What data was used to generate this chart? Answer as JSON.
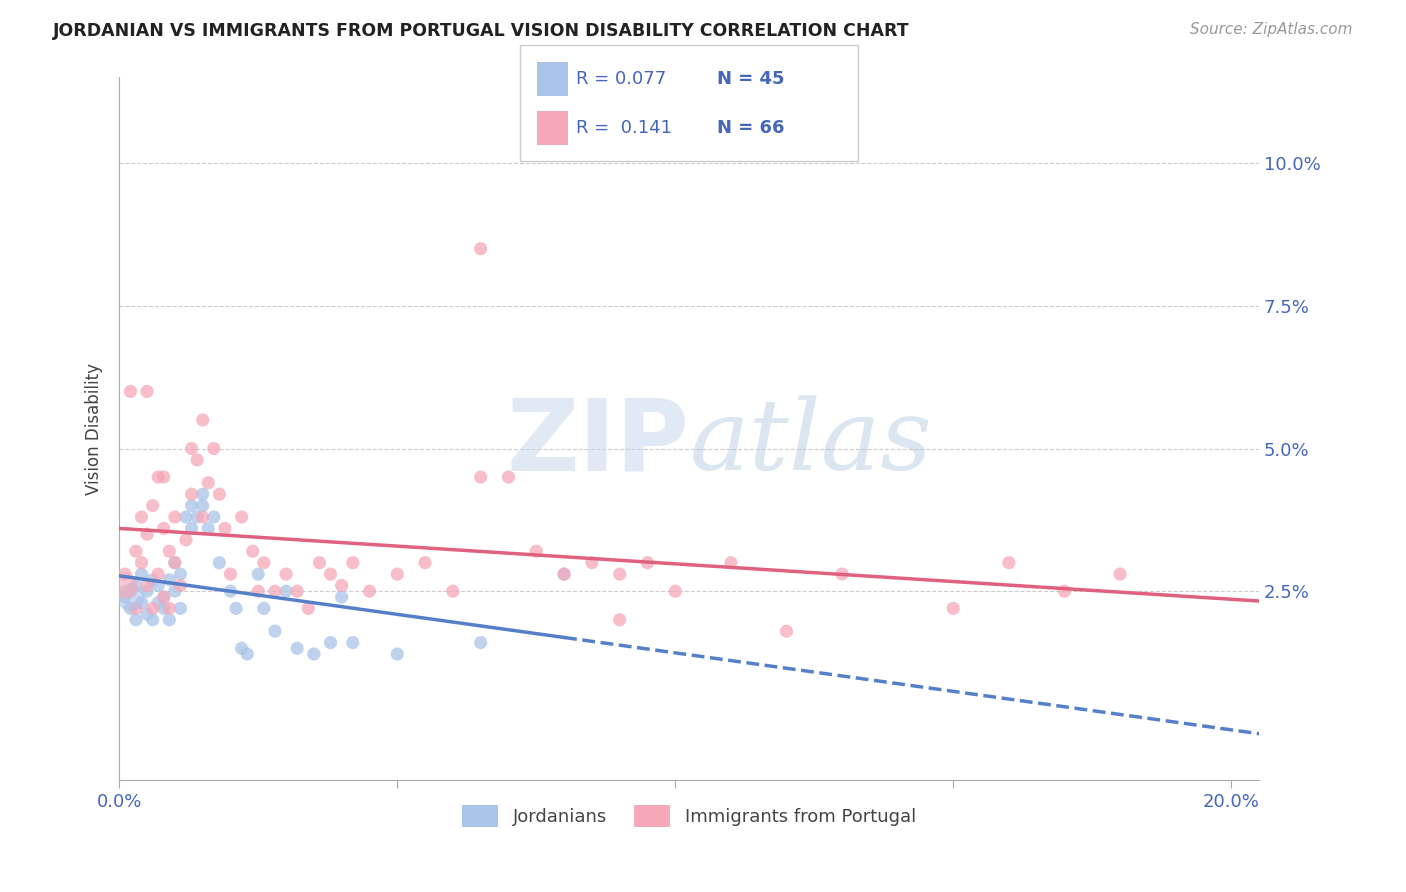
{
  "title": "JORDANIAN VS IMMIGRANTS FROM PORTUGAL VISION DISABILITY CORRELATION CHART",
  "source_text": "Source: ZipAtlas.com",
  "ylabel": "Vision Disability",
  "xlim": [
    0.0,
    0.205
  ],
  "ylim": [
    -0.008,
    0.115
  ],
  "ytick_positions": [
    0.025,
    0.05,
    0.075,
    0.1
  ],
  "ytick_labels": [
    "2.5%",
    "5.0%",
    "7.5%",
    "10.0%"
  ],
  "xtick_positions": [
    0.0,
    0.05,
    0.1,
    0.15,
    0.2
  ],
  "xtick_labels": [
    "0.0%",
    "",
    "",
    "",
    "20.0%"
  ],
  "legend_r1": "R = 0.077",
  "legend_n1": "N = 45",
  "legend_r2": "R =  0.141",
  "legend_n2": "N = 66",
  "series1_label": "Jordanians",
  "series2_label": "Immigrants from Portugal",
  "series1_color": "#aac4e8",
  "series2_color": "#f5a8b8",
  "trendline1_color": "#5580c8",
  "trendline2_color": "#e06080",
  "background_color": "#ffffff",
  "grid_color": "#cccccc",
  "axis_color": "#aaaaaa",
  "title_color": "#222222",
  "label_color": "#4466bb",
  "watermark_zip_color": "#c8d4e8",
  "watermark_atlas_color": "#b8cce0",
  "jordanians_x": [
    0.001,
    0.002,
    0.003,
    0.003,
    0.004,
    0.004,
    0.005,
    0.005,
    0.006,
    0.006,
    0.007,
    0.007,
    0.008,
    0.008,
    0.009,
    0.009,
    0.01,
    0.01,
    0.011,
    0.011,
    0.012,
    0.013,
    0.013,
    0.014,
    0.015,
    0.015,
    0.016,
    0.017,
    0.018,
    0.02,
    0.021,
    0.022,
    0.023,
    0.025,
    0.026,
    0.028,
    0.03,
    0.032,
    0.035,
    0.038,
    0.04,
    0.042,
    0.05,
    0.065,
    0.08
  ],
  "jordanians_y": [
    0.024,
    0.022,
    0.026,
    0.02,
    0.023,
    0.028,
    0.021,
    0.025,
    0.02,
    0.027,
    0.023,
    0.026,
    0.022,
    0.024,
    0.02,
    0.027,
    0.025,
    0.03,
    0.022,
    0.028,
    0.038,
    0.04,
    0.036,
    0.038,
    0.04,
    0.042,
    0.036,
    0.038,
    0.03,
    0.025,
    0.022,
    0.015,
    0.014,
    0.028,
    0.022,
    0.018,
    0.025,
    0.015,
    0.014,
    0.016,
    0.024,
    0.016,
    0.014,
    0.016,
    0.028
  ],
  "portugal_x": [
    0.001,
    0.002,
    0.003,
    0.003,
    0.004,
    0.004,
    0.005,
    0.005,
    0.006,
    0.006,
    0.007,
    0.007,
    0.008,
    0.008,
    0.009,
    0.009,
    0.01,
    0.01,
    0.011,
    0.012,
    0.013,
    0.013,
    0.014,
    0.015,
    0.015,
    0.016,
    0.017,
    0.018,
    0.019,
    0.02,
    0.022,
    0.024,
    0.025,
    0.026,
    0.028,
    0.03,
    0.032,
    0.034,
    0.036,
    0.038,
    0.04,
    0.042,
    0.045,
    0.05,
    0.055,
    0.06,
    0.065,
    0.07,
    0.075,
    0.08,
    0.085,
    0.09,
    0.095,
    0.1,
    0.11,
    0.13,
    0.15,
    0.16,
    0.17,
    0.18,
    0.002,
    0.005,
    0.008,
    0.065,
    0.09,
    0.12
  ],
  "portugal_y": [
    0.028,
    0.025,
    0.032,
    0.022,
    0.03,
    0.038,
    0.026,
    0.035,
    0.022,
    0.04,
    0.028,
    0.045,
    0.024,
    0.036,
    0.022,
    0.032,
    0.03,
    0.038,
    0.026,
    0.034,
    0.05,
    0.042,
    0.048,
    0.055,
    0.038,
    0.044,
    0.05,
    0.042,
    0.036,
    0.028,
    0.038,
    0.032,
    0.025,
    0.03,
    0.025,
    0.028,
    0.025,
    0.022,
    0.03,
    0.028,
    0.026,
    0.03,
    0.025,
    0.028,
    0.03,
    0.025,
    0.085,
    0.045,
    0.032,
    0.028,
    0.03,
    0.028,
    0.03,
    0.025,
    0.03,
    0.028,
    0.022,
    0.03,
    0.025,
    0.028,
    0.06,
    0.06,
    0.045,
    0.045,
    0.02,
    0.018
  ]
}
